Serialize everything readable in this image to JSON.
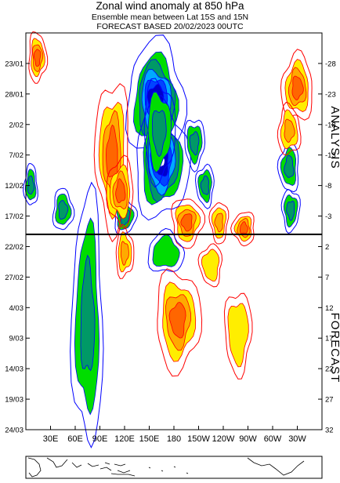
{
  "chart_data": {
    "type": "heatmap",
    "title": "Zonal wind anomaly at 850 hPa",
    "subtitle_1": "Ensemble mean between  Lat 15S and 15N",
    "subtitle_2": "FORECAST  BASED 20/02/2023 00UTC",
    "y_dates": [
      "23/01",
      "28/01",
      "2/02",
      "7/02",
      "12/02",
      "17/02",
      "22/02",
      "27/02",
      "4/03",
      "9/03",
      "14/03",
      "19/03",
      "24/03"
    ],
    "y_days": [
      -28,
      -23,
      -18,
      -13,
      -8,
      -3,
      2,
      7,
      12,
      17,
      22,
      27,
      32
    ],
    "x_labels": [
      "30E",
      "60E",
      "90E",
      "120E",
      "150E",
      "180",
      "150W",
      "120W",
      "90W",
      "60W",
      "30W"
    ],
    "x_longitudes": [
      30,
      60,
      90,
      120,
      150,
      180,
      210,
      240,
      270,
      300,
      330
    ],
    "x_range": [
      0,
      360
    ],
    "analysis_label": "ANALYSIS",
    "forecast_label": "FORECAST",
    "split_day": 0,
    "colors": {
      "neg_line": "#0000ff",
      "neg_fill_1": "#00dd00",
      "neg_fill_2": "#009966",
      "neg_fill_3": "#00aaff",
      "neg_fill_4": "#0044ff",
      "neg_fill_5": "#0000cc",
      "pos_line": "#ff0000",
      "pos_fill_1": "#ffee00",
      "pos_fill_2": "#ffaa00",
      "pos_fill_3": "#ff6600"
    }
  }
}
